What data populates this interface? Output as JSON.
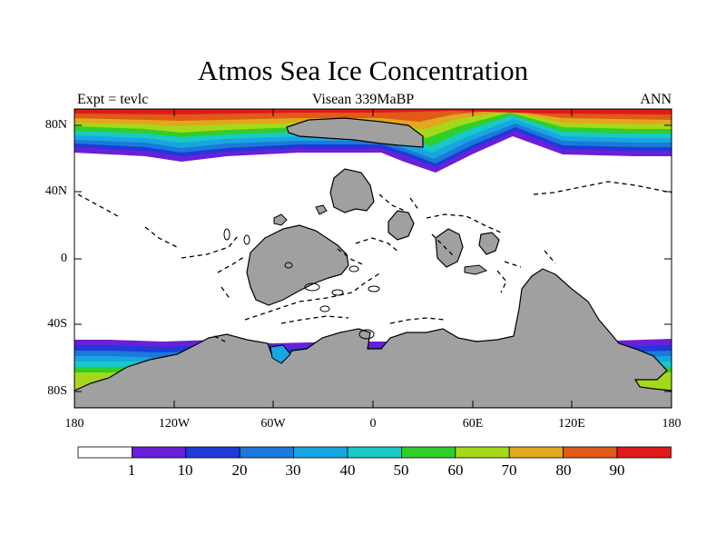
{
  "header": {
    "title": "Atmos Sea Ice Concentration",
    "left": "Expt = tevlc",
    "center": "Visean 339MaBP",
    "right": "ANN"
  },
  "map": {
    "projection": "cylindrical equidistant",
    "lon_range": [
      -180,
      180
    ],
    "lat_range": [
      -90,
      90
    ],
    "lat_ticks": [
      "80N",
      "40N",
      "0",
      "40S",
      "80S"
    ],
    "lon_ticks": [
      "180",
      "120W",
      "60W",
      "0",
      "60E",
      "120E",
      "180"
    ],
    "land_color": "#a0a0a0",
    "ocean_color": "#ffffff"
  },
  "colorbar": {
    "labels": [
      "1",
      "10",
      "20",
      "30",
      "40",
      "50",
      "60",
      "70",
      "80",
      "90"
    ],
    "colors": [
      "#ffffff",
      "#6a1fd8",
      "#1e3ad8",
      "#1c78da",
      "#18a6e0",
      "#19c8c8",
      "#2fcf2a",
      "#a6d81a",
      "#e0a81c",
      "#e05a18",
      "#e01a1a"
    ]
  },
  "chart_data": {
    "type": "heatmap",
    "title": "Atmos Sea Ice Concentration",
    "variable": "sea ice concentration",
    "levels": [
      1,
      10,
      20,
      30,
      40,
      50,
      60,
      70,
      80,
      90
    ]
  }
}
